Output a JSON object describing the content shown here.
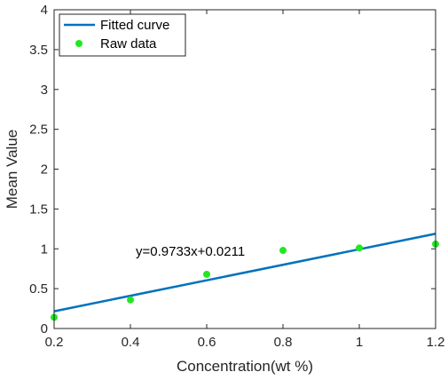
{
  "chart_data": {
    "type": "scatter",
    "title": "",
    "xlabel": "Concentration(wt %)",
    "ylabel": "Mean Value",
    "xlim": [
      0.2,
      1.2
    ],
    "ylim": [
      0,
      4
    ],
    "xticks": [
      0.2,
      0.4,
      0.6,
      0.8,
      1.0,
      1.2
    ],
    "xtick_labels": [
      "0.2",
      "0.4",
      "0.6",
      "0.8",
      "1",
      "1.2"
    ],
    "yticks": [
      0,
      0.5,
      1,
      1.5,
      2,
      2.5,
      3,
      3.5,
      4
    ],
    "ytick_labels": [
      "0",
      "0.5",
      "1",
      "1.5",
      "2",
      "2.5",
      "3",
      "3.5",
      "4"
    ],
    "grid": false,
    "box": true,
    "legend_position": "top-left",
    "series": [
      {
        "name": "Fitted curve",
        "kind": "line",
        "color": "#0072bd",
        "slope": 0.9733,
        "intercept": 0.0211,
        "x": [
          0.2,
          1.2
        ],
        "y": [
          0.216,
          1.189
        ]
      },
      {
        "name": "Raw data",
        "kind": "scatter",
        "color": "#22e822",
        "x": [
          0.2,
          0.4,
          0.6,
          0.8,
          1.0,
          1.2
        ],
        "y": [
          0.14,
          0.36,
          0.68,
          0.98,
          1.01,
          1.06
        ]
      }
    ],
    "annotations": [
      {
        "text": "y=0.9733x+0.0211",
        "x": 0.8,
        "y": 0.98
      }
    ]
  }
}
